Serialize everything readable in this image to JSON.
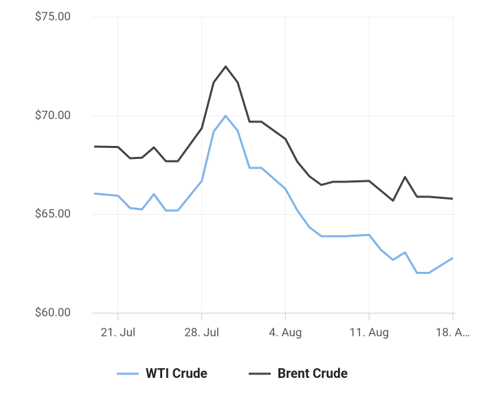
{
  "chart_data": {
    "type": "line",
    "x": [
      "19. Jul",
      "21. Jul",
      "22. Jul",
      "23. Jul",
      "24. Jul",
      "25. Jul",
      "26. Jul",
      "28. Jul",
      "29. Jul",
      "30. Jul",
      "31. Jul",
      "1. Aug",
      "2. Aug",
      "4. Aug",
      "5. Aug",
      "6. Aug",
      "7. Aug",
      "8. Aug",
      "9. Aug",
      "11. Aug",
      "12. Aug",
      "13. Aug",
      "14. Aug",
      "15. Aug",
      "16. Aug",
      "18. Aug"
    ],
    "series": [
      {
        "name": "WTI Crude",
        "color": "#7cb5ec",
        "values": [
          66.06,
          65.95,
          65.33,
          65.26,
          66.03,
          65.2,
          65.2,
          66.7,
          69.2,
          70.0,
          69.25,
          67.36,
          67.36,
          66.3,
          65.2,
          64.36,
          63.9,
          63.9,
          63.9,
          63.97,
          63.2,
          62.7,
          63.08,
          62.04,
          62.04,
          62.8
        ]
      },
      {
        "name": "Brent Crude",
        "color": "#434348",
        "values": [
          68.44,
          68.42,
          67.85,
          67.88,
          68.4,
          67.7,
          67.7,
          69.37,
          71.7,
          72.5,
          71.7,
          69.7,
          69.7,
          68.83,
          67.67,
          66.94,
          66.5,
          66.66,
          66.66,
          66.7,
          66.2,
          65.7,
          66.9,
          65.9,
          65.9,
          65.8
        ]
      }
    ],
    "xlim": [
      "19. Jul",
      "18. Aug"
    ],
    "xticks": [
      "21. Jul",
      "28. Jul",
      "4. Aug",
      "11. Aug",
      {
        "value": "18. Aug",
        "label": "18. A…"
      }
    ],
    "ylim": [
      60,
      75
    ],
    "yticks": [
      {
        "value": 60,
        "label": "$60.00"
      },
      {
        "value": 65,
        "label": "$65.00"
      },
      {
        "value": 70,
        "label": "$70.00"
      },
      {
        "value": 75,
        "label": "$75.00"
      }
    ],
    "grid": true,
    "legend": "bottom"
  }
}
